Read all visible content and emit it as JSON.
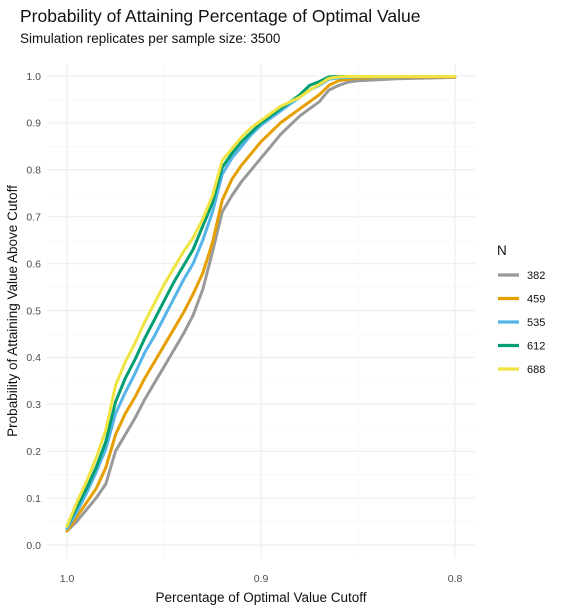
{
  "chart_data": {
    "type": "line",
    "title": "Probability of Attaining Percentage of Optimal Value",
    "subtitle": "Simulation replicates per sample size: 3500",
    "xlabel": "Percentage of Optimal Value Cutoff",
    "ylabel": "Probability of Attaining Value Above Cutoff",
    "x_reversed": true,
    "xlim": [
      1.0,
      0.8
    ],
    "ylim": [
      0.0,
      1.0
    ],
    "x_ticks": [
      "1.0",
      "0.9",
      "0.8"
    ],
    "y_ticks": [
      "0.0",
      "0.1",
      "0.2",
      "0.3",
      "0.4",
      "0.5",
      "0.6",
      "0.7",
      "0.8",
      "0.9",
      "1.0"
    ],
    "grid": true,
    "legend": {
      "title": "N",
      "position": "right"
    },
    "series": [
      {
        "name": "382",
        "color": "#999999",
        "x": [
          1.0,
          0.995,
          0.99,
          0.985,
          0.98,
          0.975,
          0.97,
          0.965,
          0.96,
          0.955,
          0.95,
          0.945,
          0.94,
          0.935,
          0.93,
          0.925,
          0.92,
          0.915,
          0.91,
          0.905,
          0.9,
          0.895,
          0.89,
          0.885,
          0.88,
          0.875,
          0.87,
          0.865,
          0.86,
          0.855,
          0.85,
          0.845,
          0.84,
          0.835,
          0.83,
          0.82,
          0.81,
          0.8
        ],
        "y": [
          0.03,
          0.05,
          0.075,
          0.1,
          0.13,
          0.2,
          0.235,
          0.27,
          0.31,
          0.345,
          0.38,
          0.415,
          0.45,
          0.49,
          0.545,
          0.625,
          0.71,
          0.745,
          0.775,
          0.8,
          0.825,
          0.85,
          0.875,
          0.895,
          0.915,
          0.93,
          0.945,
          0.97,
          0.98,
          0.987,
          0.99,
          0.991,
          0.992,
          0.993,
          0.994,
          0.995,
          0.996,
          0.997
        ]
      },
      {
        "name": "459",
        "color": "#E69F00",
        "x": [
          1.0,
          0.995,
          0.99,
          0.985,
          0.98,
          0.975,
          0.97,
          0.965,
          0.96,
          0.955,
          0.95,
          0.945,
          0.94,
          0.935,
          0.93,
          0.925,
          0.92,
          0.915,
          0.91,
          0.905,
          0.9,
          0.895,
          0.89,
          0.885,
          0.88,
          0.875,
          0.87,
          0.865,
          0.86,
          0.855,
          0.85,
          0.845,
          0.84,
          0.83,
          0.82,
          0.81,
          0.8
        ],
        "y": [
          0.03,
          0.06,
          0.09,
          0.12,
          0.165,
          0.235,
          0.28,
          0.315,
          0.355,
          0.39,
          0.425,
          0.46,
          0.495,
          0.535,
          0.58,
          0.645,
          0.735,
          0.78,
          0.81,
          0.835,
          0.86,
          0.88,
          0.9,
          0.915,
          0.93,
          0.945,
          0.96,
          0.98,
          0.99,
          0.993,
          0.995,
          0.996,
          0.997,
          0.997,
          0.998,
          0.998,
          0.998
        ]
      },
      {
        "name": "535",
        "color": "#56B4E9",
        "x": [
          1.0,
          0.995,
          0.99,
          0.985,
          0.98,
          0.975,
          0.97,
          0.965,
          0.96,
          0.955,
          0.95,
          0.945,
          0.94,
          0.935,
          0.93,
          0.925,
          0.92,
          0.915,
          0.91,
          0.905,
          0.9,
          0.895,
          0.89,
          0.885,
          0.88,
          0.875,
          0.87,
          0.865,
          0.86,
          0.855,
          0.85,
          0.845,
          0.84,
          0.83,
          0.82,
          0.81,
          0.8
        ],
        "y": [
          0.035,
          0.07,
          0.11,
          0.155,
          0.205,
          0.28,
          0.325,
          0.365,
          0.41,
          0.445,
          0.485,
          0.525,
          0.565,
          0.6,
          0.65,
          0.71,
          0.79,
          0.825,
          0.85,
          0.875,
          0.895,
          0.91,
          0.925,
          0.94,
          0.955,
          0.97,
          0.98,
          0.993,
          0.996,
          0.997,
          0.998,
          0.998,
          0.998,
          0.998,
          0.999,
          0.999,
          0.999
        ]
      },
      {
        "name": "612",
        "color": "#009E73",
        "x": [
          1.0,
          0.995,
          0.99,
          0.985,
          0.98,
          0.975,
          0.97,
          0.965,
          0.96,
          0.955,
          0.95,
          0.945,
          0.94,
          0.935,
          0.93,
          0.925,
          0.92,
          0.915,
          0.91,
          0.905,
          0.9,
          0.895,
          0.89,
          0.885,
          0.88,
          0.875,
          0.87,
          0.865,
          0.86,
          0.855,
          0.85,
          0.845,
          0.84,
          0.83,
          0.82,
          0.81,
          0.8
        ],
        "y": [
          0.04,
          0.08,
          0.12,
          0.165,
          0.22,
          0.305,
          0.355,
          0.395,
          0.44,
          0.48,
          0.52,
          0.56,
          0.595,
          0.63,
          0.68,
          0.73,
          0.805,
          0.835,
          0.86,
          0.88,
          0.9,
          0.915,
          0.93,
          0.945,
          0.96,
          0.98,
          0.988,
          0.998,
          0.999,
          0.999,
          0.999,
          0.999,
          0.999,
          0.999,
          0.999,
          0.999,
          0.999
        ]
      },
      {
        "name": "688",
        "color": "#F0E442",
        "x": [
          1.0,
          0.995,
          0.99,
          0.985,
          0.98,
          0.975,
          0.97,
          0.965,
          0.96,
          0.955,
          0.95,
          0.945,
          0.94,
          0.935,
          0.93,
          0.925,
          0.92,
          0.915,
          0.91,
          0.905,
          0.9,
          0.895,
          0.89,
          0.885,
          0.88,
          0.875,
          0.87,
          0.865,
          0.86,
          0.855,
          0.85,
          0.845,
          0.84,
          0.83,
          0.82,
          0.81,
          0.8
        ],
        "y": [
          0.04,
          0.09,
          0.135,
          0.185,
          0.245,
          0.34,
          0.39,
          0.43,
          0.475,
          0.515,
          0.555,
          0.59,
          0.625,
          0.655,
          0.695,
          0.745,
          0.82,
          0.845,
          0.87,
          0.89,
          0.905,
          0.92,
          0.935,
          0.945,
          0.955,
          0.97,
          0.982,
          0.995,
          0.998,
          0.999,
          0.999,
          0.999,
          0.999,
          0.999,
          0.999,
          0.999,
          0.999
        ]
      }
    ]
  }
}
